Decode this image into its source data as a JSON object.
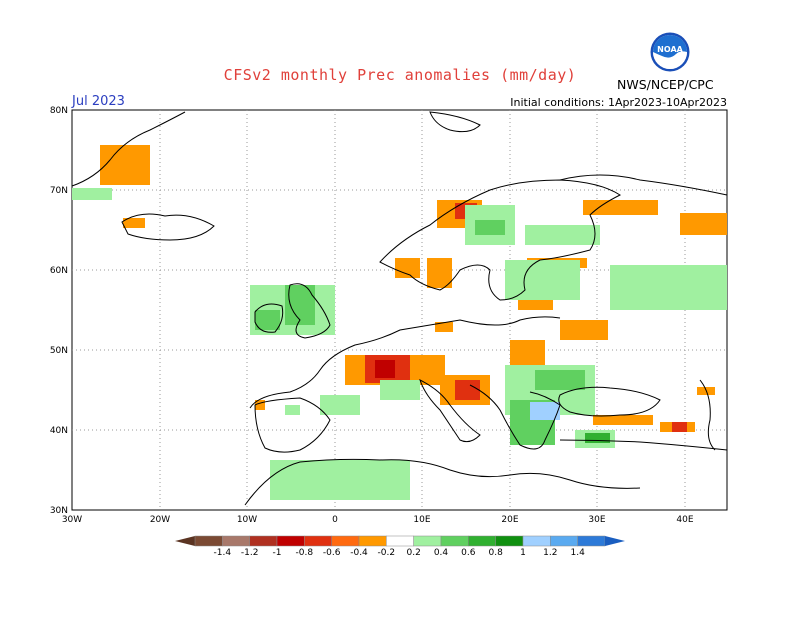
{
  "header": {
    "title": "CFSv2 monthly Prec anomalies (mm/day)",
    "month": "Jul 2023",
    "initial_conditions": "Initial conditions: 1Apr2023-10Apr2023",
    "agency": "NWS/NCEP/CPC",
    "logo_text": "NOAA"
  },
  "axes": {
    "lat_labels": [
      "80N",
      "70N",
      "60N",
      "50N",
      "40N",
      "30N"
    ],
    "lon_labels": [
      "30W",
      "20W",
      "10W",
      "0",
      "10E",
      "20E",
      "30E",
      "40E"
    ]
  },
  "legend": {
    "labels": [
      "-1.4",
      "-1.2",
      "-1",
      "-0.8",
      "-0.6",
      "-0.4",
      "-0.2",
      "0.2",
      "0.4",
      "0.6",
      "0.8",
      "1",
      "1.2",
      "1.4"
    ],
    "colors": [
      "#7b4a33",
      "#a8786a",
      "#b03020",
      "#c00000",
      "#e03010",
      "#ff6a10",
      "#ff9900",
      "#ffffff",
      "#a0f0a0",
      "#60d060",
      "#30b030",
      "#109010",
      "#a0d0ff",
      "#5aaaf0",
      "#2d7ad8"
    ]
  },
  "colors": {
    "title": "#e0403a",
    "month": "#2b3ec0",
    "map_border": "#000000",
    "gridline": "#888888"
  }
}
